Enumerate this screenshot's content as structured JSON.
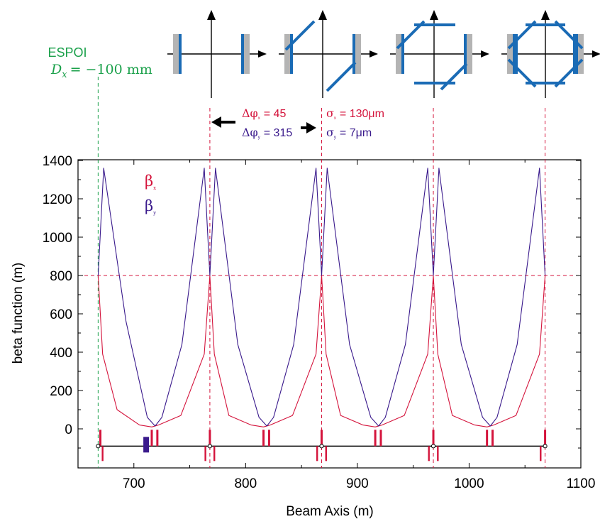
{
  "colors": {
    "beta_x": "#d4143c",
    "beta_y": "#3a1a8c",
    "espoi": "#1aa04a",
    "element_magnet": "#d4143c",
    "element_dark": "#3a1a8c",
    "collimator_blue": "#1a6bb5",
    "collimator_grey": "#b4b4b4"
  },
  "espoi": {
    "label": "ESPOI",
    "dispersion_label": "D",
    "dispersion_sub": "x",
    "dispersion_value": "= −100 mm"
  },
  "phase_annotation": {
    "dphi_x_symbol": "Δφ",
    "dphi_x_sub": "x",
    "dphi_x_value": "= 45",
    "dphi_y_symbol": "Δφ",
    "dphi_y_sub": "y",
    "dphi_y_value": "= 315",
    "sigma_x_symbol": "σ",
    "sigma_x_sub": "x",
    "sigma_x_value": "= 130μm",
    "sigma_y_symbol": "σ",
    "sigma_y_sub": "y",
    "sigma_y_value": "= 7μm"
  },
  "legend": {
    "beta_x_symbol": "β",
    "beta_x_sub": "x",
    "beta_y_symbol": "β",
    "beta_y_sub": "y"
  },
  "chart_data": {
    "type": "line",
    "title": "",
    "xlabel": "Beam Axis (m)",
    "ylabel": "beta function (m)",
    "xlim": [
      650,
      1100
    ],
    "ylim": [
      -175,
      1400
    ],
    "x_ticks": [
      700,
      800,
      900,
      1000,
      1100
    ],
    "y_ticks": [
      0,
      200,
      400,
      600,
      800,
      1000,
      1200,
      1400
    ],
    "x_tick_labels": [
      "700",
      "800",
      "900",
      "1000",
      "1100"
    ],
    "y_tick_labels": [
      "0",
      "200",
      "400",
      "600",
      "800",
      "1000",
      "1200",
      "1400"
    ],
    "reference_line_y": 800,
    "espoi_line_x": 668,
    "cell_boundaries_x": [
      768,
      868,
      968,
      1068
    ],
    "series": [
      {
        "name": "β_x",
        "x": [
          668,
          672,
          685,
          705,
          716,
          722,
          742,
          763,
          768,
          772,
          785,
          805,
          816,
          822,
          842,
          863,
          868,
          872,
          885,
          905,
          916,
          922,
          942,
          963,
          968,
          972,
          985,
          1005,
          1016,
          1022,
          1042,
          1063,
          1068
        ],
        "y": [
          800,
          390,
          100,
          20,
          10,
          20,
          70,
          390,
          800,
          390,
          70,
          20,
          10,
          20,
          70,
          390,
          800,
          390,
          70,
          20,
          10,
          20,
          70,
          390,
          800,
          390,
          70,
          20,
          10,
          20,
          70,
          390,
          800
        ]
      },
      {
        "name": "β_y",
        "x": [
          668,
          673,
          693,
          712,
          719,
          725,
          743,
          763,
          768,
          773,
          793,
          812,
          819,
          825,
          843,
          863,
          868,
          873,
          893,
          912,
          919,
          925,
          943,
          963,
          968,
          973,
          993,
          1012,
          1019,
          1025,
          1043,
          1063,
          1068
        ],
        "y": [
          800,
          1360,
          560,
          60,
          15,
          60,
          440,
          1360,
          800,
          1360,
          440,
          60,
          15,
          60,
          440,
          1360,
          800,
          1360,
          440,
          60,
          15,
          60,
          440,
          1360,
          800,
          1360,
          440,
          60,
          15,
          60,
          440,
          1360,
          800
        ]
      }
    ],
    "lattice_elements": {
      "baseline_y": -90,
      "top_magnets_x": [
        670,
        716,
        721,
        768,
        816,
        821,
        868,
        916,
        921,
        968,
        1016,
        1021,
        1068
      ],
      "bottom_magnets_x": [
        672,
        764,
        772,
        864,
        872,
        964,
        972,
        1064
      ],
      "dark_block_x": 711,
      "markers_x": [
        668,
        768,
        868,
        968,
        1068
      ]
    }
  }
}
